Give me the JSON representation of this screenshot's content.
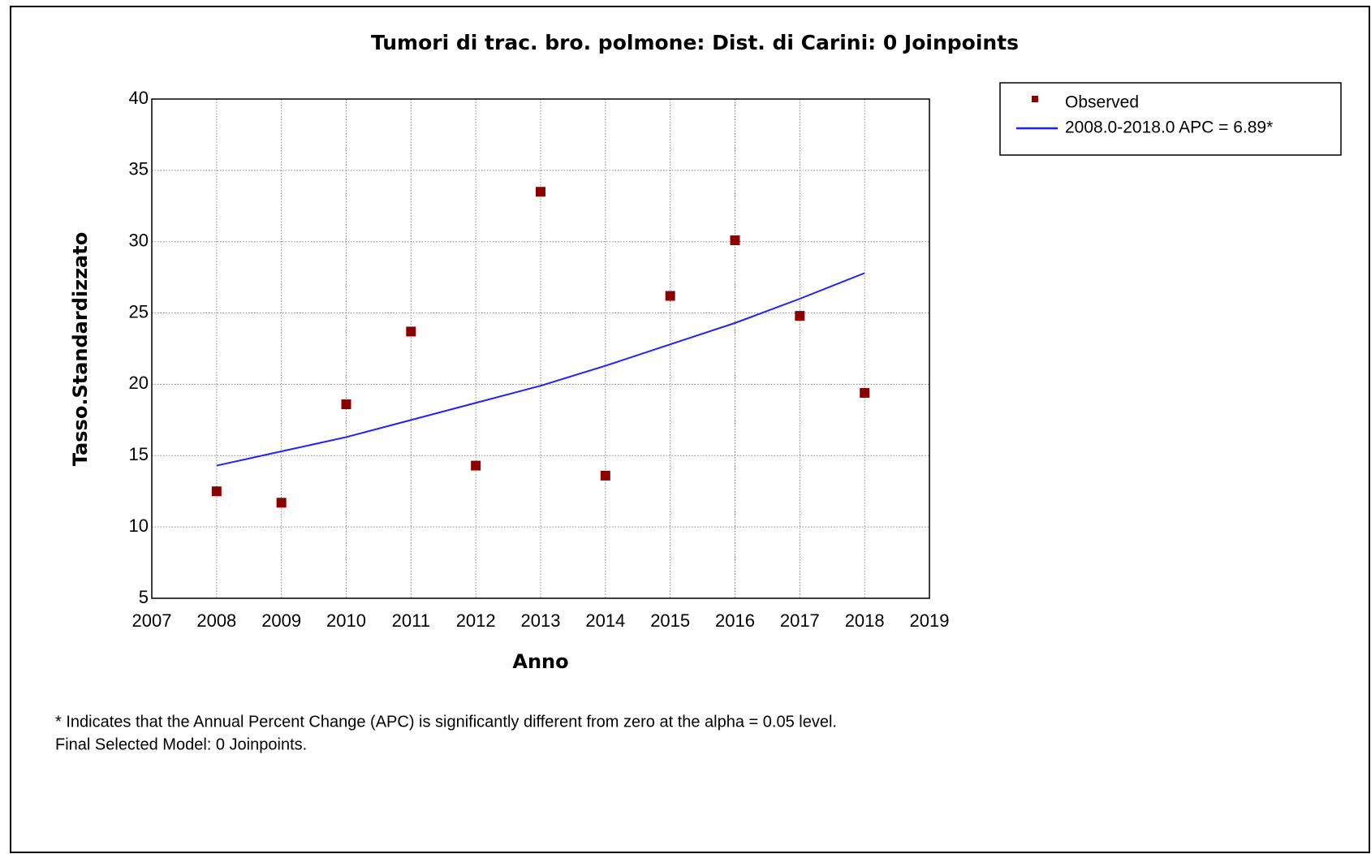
{
  "chart_data": {
    "type": "scatter",
    "title": "Tumori di trac. bro. polmone: Dist. di Carini: 0 Joinpoints",
    "x_label": "Anno",
    "y_label": "Tasso.Standardizzato",
    "x": [
      2008,
      2009,
      2010,
      2011,
      2012,
      2013,
      2014,
      2015,
      2016,
      2017,
      2018
    ],
    "series": [
      {
        "name": "Observed",
        "color": "#8b0000",
        "marker": "square",
        "values": [
          12.5,
          11.7,
          18.6,
          23.7,
          14.3,
          33.5,
          13.6,
          26.2,
          30.1,
          24.8,
          19.4
        ]
      },
      {
        "name": "2008.0-2018.0 APC  = 6.89*",
        "color": "#2020ff",
        "marker": "line",
        "values": [
          14.3,
          15.3,
          16.3,
          17.5,
          18.7,
          19.9,
          21.3,
          22.8,
          24.3,
          26.0,
          27.8
        ]
      }
    ],
    "xlim": [
      2007,
      2019
    ],
    "xticks": [
      2007,
      2008,
      2009,
      2010,
      2011,
      2012,
      2013,
      2014,
      2015,
      2016,
      2017,
      2018,
      2019
    ],
    "ylim": [
      5,
      40
    ],
    "yticks": [
      5,
      10,
      15,
      20,
      25,
      30,
      35,
      40
    ],
    "grid": true,
    "legend": "outside-top-right",
    "notes": [
      "* Indicates that the Annual Percent Change (APC) is significantly different from zero at the alpha = 0.05 level.",
      "Final Selected Model: 0 Joinpoints."
    ]
  }
}
